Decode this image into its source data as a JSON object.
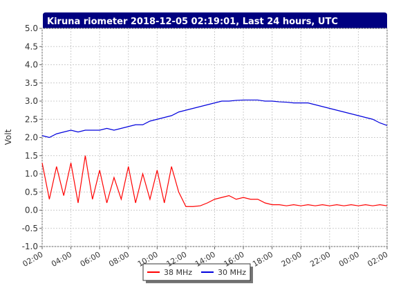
{
  "chart_data": {
    "type": "line",
    "title": "Kiruna riometer 2018-12-05 02:19:01, Last 24 hours, UTC",
    "y_label": "Volt",
    "x": [
      2,
      2.5,
      3,
      3.5,
      4,
      4.5,
      5,
      5.5,
      6,
      6.5,
      7,
      7.5,
      8,
      8.5,
      9,
      9.5,
      10,
      10.5,
      11,
      11.5,
      12,
      12.5,
      13,
      13.5,
      14,
      14.5,
      15,
      15.5,
      16,
      16.5,
      17,
      17.5,
      18,
      18.5,
      19,
      19.5,
      20,
      20.5,
      21,
      21.5,
      22,
      22.5,
      23,
      23.5,
      24,
      24.5,
      25,
      25.5,
      26
    ],
    "series": [
      {
        "name": "38 MHz",
        "color": "#ff0000",
        "values": [
          1.3,
          0.3,
          1.2,
          0.4,
          1.3,
          0.2,
          1.5,
          0.3,
          1.1,
          0.2,
          0.9,
          0.3,
          1.2,
          0.2,
          1.0,
          0.3,
          1.1,
          0.2,
          1.2,
          0.5,
          0.1,
          0.1,
          0.12,
          0.2,
          0.3,
          0.35,
          0.4,
          0.3,
          0.35,
          0.3,
          0.3,
          0.2,
          0.15,
          0.15,
          0.12,
          0.15,
          0.12,
          0.15,
          0.12,
          0.15,
          0.12,
          0.15,
          0.12,
          0.15,
          0.12,
          0.15,
          0.12,
          0.15,
          0.12
        ]
      },
      {
        "name": "30 MHz",
        "color": "#0000dd",
        "values": [
          2.05,
          2.0,
          2.1,
          2.15,
          2.2,
          2.15,
          2.2,
          2.2,
          2.2,
          2.25,
          2.2,
          2.25,
          2.3,
          2.35,
          2.35,
          2.45,
          2.5,
          2.55,
          2.6,
          2.7,
          2.75,
          2.8,
          2.85,
          2.9,
          2.95,
          3.0,
          3.0,
          3.02,
          3.03,
          3.03,
          3.03,
          3.0,
          3.0,
          2.98,
          2.97,
          2.95,
          2.95,
          2.95,
          2.9,
          2.85,
          2.8,
          2.75,
          2.7,
          2.65,
          2.6,
          2.55,
          2.5,
          2.4,
          2.33
        ]
      }
    ],
    "xlim": [
      2,
      26
    ],
    "xticks": [
      {
        "value": 2,
        "label": "02:00"
      },
      {
        "value": 4,
        "label": "04:00"
      },
      {
        "value": 6,
        "label": "06:00"
      },
      {
        "value": 8,
        "label": "08:00"
      },
      {
        "value": 10,
        "label": "10:00"
      },
      {
        "value": 12,
        "label": "12:00"
      },
      {
        "value": 14,
        "label": "14:00"
      },
      {
        "value": 16,
        "label": "16:00"
      },
      {
        "value": 18,
        "label": "18:00"
      },
      {
        "value": 20,
        "label": "20:00"
      },
      {
        "value": 22,
        "label": "22:00"
      },
      {
        "value": 24,
        "label": "00:00"
      },
      {
        "value": 26,
        "label": "02:00"
      }
    ],
    "ylim": [
      -1,
      5
    ],
    "yticks": [
      {
        "value": -1,
        "label": "-1.0"
      },
      {
        "value": -0.5,
        "label": "-0.5"
      },
      {
        "value": 0,
        "label": "0.0"
      },
      {
        "value": 0.5,
        "label": "0.5"
      },
      {
        "value": 1,
        "label": "1.0"
      },
      {
        "value": 1.5,
        "label": "1.5"
      },
      {
        "value": 2,
        "label": "2.0"
      },
      {
        "value": 2.5,
        "label": "2.5"
      },
      {
        "value": 3,
        "label": "3.0"
      },
      {
        "value": 3.5,
        "label": "3.5"
      },
      {
        "value": 4,
        "label": "4.0"
      },
      {
        "value": 4.5,
        "label": "4.5"
      },
      {
        "value": 5,
        "label": "5.0"
      }
    ],
    "grid": true
  }
}
